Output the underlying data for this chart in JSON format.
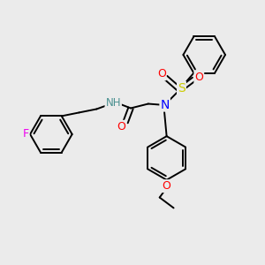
{
  "background_color": "#ebebeb",
  "bond_color": "#000000",
  "bond_width": 1.4,
  "atom_colors": {
    "F": "#ee00ee",
    "O": "#ff0000",
    "N": "#0000ff",
    "S": "#cccc00",
    "H": "#4a9090",
    "C": "#000000"
  },
  "figsize": [
    3.0,
    3.0
  ],
  "dpi": 100
}
